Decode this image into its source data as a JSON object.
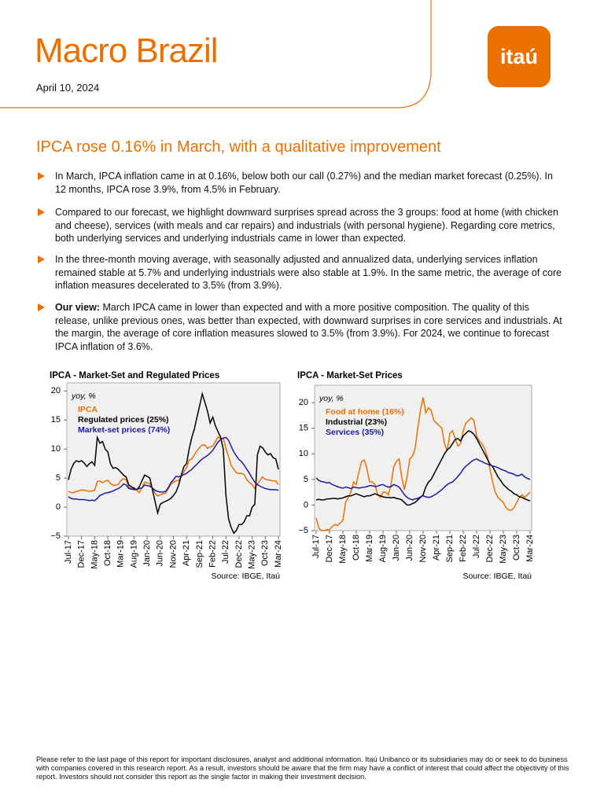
{
  "header": {
    "title": "Macro Brazil",
    "date": "April 10, 2024",
    "logo": "itaú"
  },
  "headline": "IPCA rose 0.16% in March, with a qualitative improvement",
  "bullets": [
    {
      "text": "In March, IPCA inflation came in at 0.16%, below both our call (0.27%) and the median market forecast (0.25%). In 12 months, IPCA rose 3.9%, from 4.5% in February."
    },
    {
      "text": "Compared to our forecast, we highlight downward surprises spread across the 3 groups: food at home (with chicken and cheese), services (with meals and car repairs) and industrials (with personal hygiene). Regarding core metrics, both underlying services and underlying industrials came in lower than expected."
    },
    {
      "text": "In the three-month moving average, with seasonally adjusted and annualized data, underlying services inflation remained stable at 5.7% and underlying industrials were also stable at 1.9%. In the same metric, the average of core inflation measures decelerated to 3.5% (from 3.9%)."
    },
    {
      "lead": "Our view:",
      "text": "March IPCA came in lower than expected and with a more positive composition. The quality of this release, unlike previous ones, was better than expected, with downward surprises in core services and industrials. At the margin, the average of core inflation measures slowed to 3.5% (from 3.9%). For 2024, we continue to forecast IPCA inflation of 3.6%."
    }
  ],
  "footer": "Please refer to the last page of this report for important disclosures, analyst and additional information. Itaú Unibanco or its subsidiaries may do or seek to do business with companies covered in this research report. As a result, investors should be aware that the firm may have a conflict of interest that could affect the objectivity of this report. Investors should not consider this report as the single factor in making their investment decision.",
  "chart_data": [
    {
      "type": "line",
      "title": "IPCA - Market-Set and Regulated Prices",
      "annotation": "yoy, %",
      "source": "Source: IBGE, Itaú",
      "ylim": [
        -5,
        21.4
      ],
      "yticks": [
        {
          "value": -5,
          "label": "−5"
        },
        0,
        5,
        10,
        15,
        20
      ],
      "categories": [
        "Jul-17",
        null,
        null,
        null,
        null,
        "Dec-17",
        null,
        null,
        null,
        null,
        "May-18",
        null,
        null,
        null,
        null,
        "Oct-18",
        null,
        null,
        null,
        null,
        "Mar-19",
        null,
        null,
        null,
        null,
        "Aug-19",
        null,
        null,
        null,
        null,
        "Jan-20",
        null,
        null,
        null,
        null,
        "Jun-20",
        null,
        null,
        null,
        null,
        "Nov-20",
        null,
        null,
        null,
        null,
        "Apr-21",
        null,
        null,
        null,
        null,
        "Sep-21",
        null,
        null,
        null,
        null,
        "Feb-22",
        null,
        null,
        null,
        null,
        "Jul-22",
        null,
        null,
        null,
        null,
        "Dec-22",
        null,
        null,
        null,
        null,
        "May-23",
        null,
        null,
        null,
        null,
        "Oct-23",
        null,
        null,
        null,
        null,
        "Mar-24"
      ],
      "series": [
        {
          "name": "IPCA",
          "color": "#ec7000",
          "values": [
            2.7,
            2.5,
            2.5,
            2.7,
            2.8,
            2.95,
            2.9,
            2.8,
            2.7,
            2.8,
            2.9,
            4.4,
            4.5,
            4.2,
            4.5,
            4.6,
            4.1,
            3.75,
            3.8,
            3.9,
            4.6,
            4.9,
            4.7,
            3.4,
            3.2,
            3.4,
            2.9,
            2.5,
            3.3,
            4.3,
            4.2,
            4.0,
            3.3,
            2.4,
            1.9,
            2.1,
            2.3,
            2.4,
            3.1,
            3.9,
            4.3,
            4.5,
            4.6,
            5.2,
            6.1,
            6.8,
            8.1,
            8.3,
            9.0,
            9.7,
            10.3,
            10.7,
            10.7,
            10.1,
            10.4,
            10.5,
            11.3,
            12.1,
            11.7,
            11.9,
            10.1,
            8.7,
            7.2,
            6.5,
            5.9,
            5.8,
            5.8,
            5.6,
            4.7,
            4.2,
            3.9,
            3.2,
            4.0,
            4.6,
            5.2,
            4.8,
            4.7,
            4.6,
            4.5,
            4.5,
            3.9
          ]
        },
        {
          "name": "Regulated prices (25%)",
          "color": "#000000",
          "values": [
            4.7,
            6.5,
            7.5,
            8.0,
            7.8,
            8.0,
            7.6,
            7.0,
            7.5,
            7.8,
            7.2,
            12.0,
            11.0,
            11.3,
            10.0,
            9.5,
            7.5,
            6.7,
            6.8,
            6.5,
            6.0,
            5.5,
            5.2,
            3.8,
            3.5,
            3.2,
            3.0,
            3.5,
            4.5,
            5.5,
            5.3,
            5.0,
            3.0,
            1.0,
            -1.0,
            0.5,
            0.8,
            1.0,
            1.2,
            1.5,
            2.0,
            2.6,
            3.8,
            5.5,
            7.0,
            7.5,
            10.0,
            12.0,
            13.5,
            15.5,
            17.5,
            19.5,
            18.0,
            16.5,
            14.5,
            15.5,
            14.0,
            13.0,
            12.0,
            10.0,
            2.0,
            -2.0,
            -3.5,
            -4.5,
            -4.0,
            -3.0,
            -3.0,
            -2.5,
            -1.5,
            -1.5,
            0.0,
            0.5,
            9.0,
            10.5,
            10.2,
            9.5,
            9.0,
            9.2,
            8.5,
            8.3,
            6.5
          ]
        },
        {
          "name": "Market-set prices (74%)",
          "color": "#1a1aa6",
          "values": [
            1.8,
            1.5,
            1.4,
            1.4,
            1.3,
            1.3,
            1.3,
            1.2,
            1.1,
            1.2,
            1.1,
            1.5,
            2.0,
            2.2,
            2.4,
            2.5,
            2.6,
            2.8,
            3.0,
            3.2,
            3.5,
            4.0,
            3.8,
            3.2,
            3.1,
            3.0,
            3.0,
            3.2,
            3.3,
            3.8,
            3.7,
            3.6,
            3.3,
            2.9,
            2.7,
            2.6,
            2.6,
            2.7,
            3.3,
            4.2,
            4.7,
            5.3,
            5.2,
            5.4,
            5.6,
            5.8,
            6.2,
            6.5,
            7.0,
            7.4,
            7.9,
            8.3,
            8.6,
            8.9,
            9.3,
            9.8,
            10.5,
            11.2,
            11.6,
            11.9,
            12.0,
            11.5,
            10.5,
            9.5,
            8.8,
            8.2,
            7.8,
            7.2,
            6.5,
            5.8,
            5.0,
            4.3,
            3.9,
            3.6,
            3.4,
            3.2,
            3.1,
            3.0,
            3.0,
            3.0,
            2.9
          ]
        }
      ]
    },
    {
      "type": "line",
      "title": "IPCA - Market-Set Prices",
      "annotation": "yoy, %",
      "source": "Source: IBGE, Itaú",
      "ylim": [
        -5,
        23.4
      ],
      "yticks": [
        {
          "value": -5,
          "label": "−5"
        },
        0,
        5,
        10,
        15,
        20
      ],
      "categories": [
        "Jul-17",
        null,
        null,
        null,
        null,
        "Dec-17",
        null,
        null,
        null,
        null,
        "May-18",
        null,
        null,
        null,
        null,
        "Oct-18",
        null,
        null,
        null,
        null,
        "Mar-19",
        null,
        null,
        null,
        null,
        "Aug-19",
        null,
        null,
        null,
        null,
        "Jan-20",
        null,
        null,
        null,
        null,
        "Jun-20",
        null,
        null,
        null,
        null,
        "Nov-20",
        null,
        null,
        null,
        null,
        "Apr-21",
        null,
        null,
        null,
        null,
        "Sep-21",
        null,
        null,
        null,
        null,
        "Feb-22",
        null,
        null,
        null,
        null,
        "Jul-22",
        null,
        null,
        null,
        null,
        "Dec-22",
        null,
        null,
        null,
        null,
        "May-23",
        null,
        null,
        null,
        null,
        "Oct-23",
        null,
        null,
        null,
        null,
        "Mar-24"
      ],
      "series": [
        {
          "name": "Food at home (16%)",
          "color": "#ec7000",
          "values": [
            -2.5,
            -4.5,
            -5.0,
            -5.0,
            -4.8,
            -4.8,
            -4.2,
            -3.8,
            -4.0,
            -3.5,
            -3.0,
            0.5,
            1.5,
            2.5,
            4.5,
            4.0,
            6.5,
            8.5,
            8.8,
            7.0,
            4.5,
            4.5,
            4.0,
            2.0,
            1.5,
            2.5,
            2.5,
            2.0,
            4.0,
            7.5,
            8.5,
            9.0,
            5.5,
            3.0,
            5.5,
            9.0,
            9.5,
            11.0,
            15.0,
            18.5,
            21.0,
            18.0,
            19.0,
            18.5,
            16.5,
            16.0,
            15.5,
            15.0,
            12.0,
            10.5,
            14.0,
            14.5,
            13.0,
            11.5,
            12.0,
            14.5,
            16.0,
            16.5,
            17.0,
            16.5,
            13.5,
            12.5,
            12.0,
            11.0,
            9.5,
            7.0,
            4.5,
            2.5,
            1.5,
            1.0,
            0.5,
            -0.5,
            -1.0,
            -1.0,
            -0.5,
            0.5,
            1.5,
            2.0,
            1.5,
            2.0,
            2.5
          ]
        },
        {
          "name": "Industrial (23%)",
          "color": "#000000",
          "values": [
            1.0,
            1.1,
            1.0,
            1.0,
            1.2,
            1.2,
            1.3,
            1.3,
            1.2,
            1.3,
            1.4,
            1.6,
            1.8,
            1.8,
            2.0,
            2.2,
            2.0,
            1.8,
            1.6,
            1.8,
            1.8,
            2.0,
            2.2,
            2.0,
            1.8,
            1.6,
            1.5,
            1.5,
            1.4,
            1.5,
            1.3,
            1.2,
            1.0,
            0.5,
            0.0,
            0.0,
            0.3,
            0.5,
            1.0,
            1.5,
            2.0,
            3.5,
            4.5,
            5.0,
            6.0,
            7.0,
            8.0,
            9.0,
            10.0,
            10.8,
            11.2,
            12.0,
            12.8,
            13.0,
            12.5,
            13.5,
            14.0,
            14.5,
            14.3,
            13.8,
            13.0,
            12.0,
            11.0,
            10.0,
            9.0,
            8.0,
            7.5,
            6.5,
            5.5,
            4.8,
            4.0,
            3.5,
            3.0,
            2.7,
            2.2,
            2.0,
            1.6,
            1.5,
            1.2,
            1.0,
            0.8
          ]
        },
        {
          "name": "Services (35%)",
          "color": "#1a1aa6",
          "values": [
            5.3,
            4.8,
            4.6,
            4.5,
            4.3,
            4.4,
            4.0,
            3.8,
            3.6,
            3.4,
            3.3,
            3.5,
            3.4,
            3.2,
            3.5,
            3.4,
            3.3,
            3.4,
            3.5,
            3.6,
            3.8,
            3.8,
            3.6,
            3.7,
            3.9,
            4.0,
            3.7,
            3.5,
            3.6,
            4.0,
            3.8,
            3.5,
            2.8,
            2.0,
            1.5,
            1.2,
            1.0,
            1.2,
            1.3,
            1.6,
            1.8,
            1.6,
            1.5,
            1.6,
            1.9,
            2.2,
            2.6,
            3.0,
            3.5,
            4.0,
            4.3,
            4.5,
            5.0,
            5.6,
            6.2,
            7.0,
            7.6,
            8.0,
            8.5,
            8.8,
            9.0,
            8.7,
            8.5,
            8.2,
            8.0,
            7.8,
            7.6,
            7.5,
            7.3,
            7.0,
            6.8,
            6.6,
            6.3,
            6.2,
            6.0,
            5.7,
            5.8,
            6.0,
            5.5,
            5.2,
            5.0
          ]
        }
      ]
    }
  ]
}
